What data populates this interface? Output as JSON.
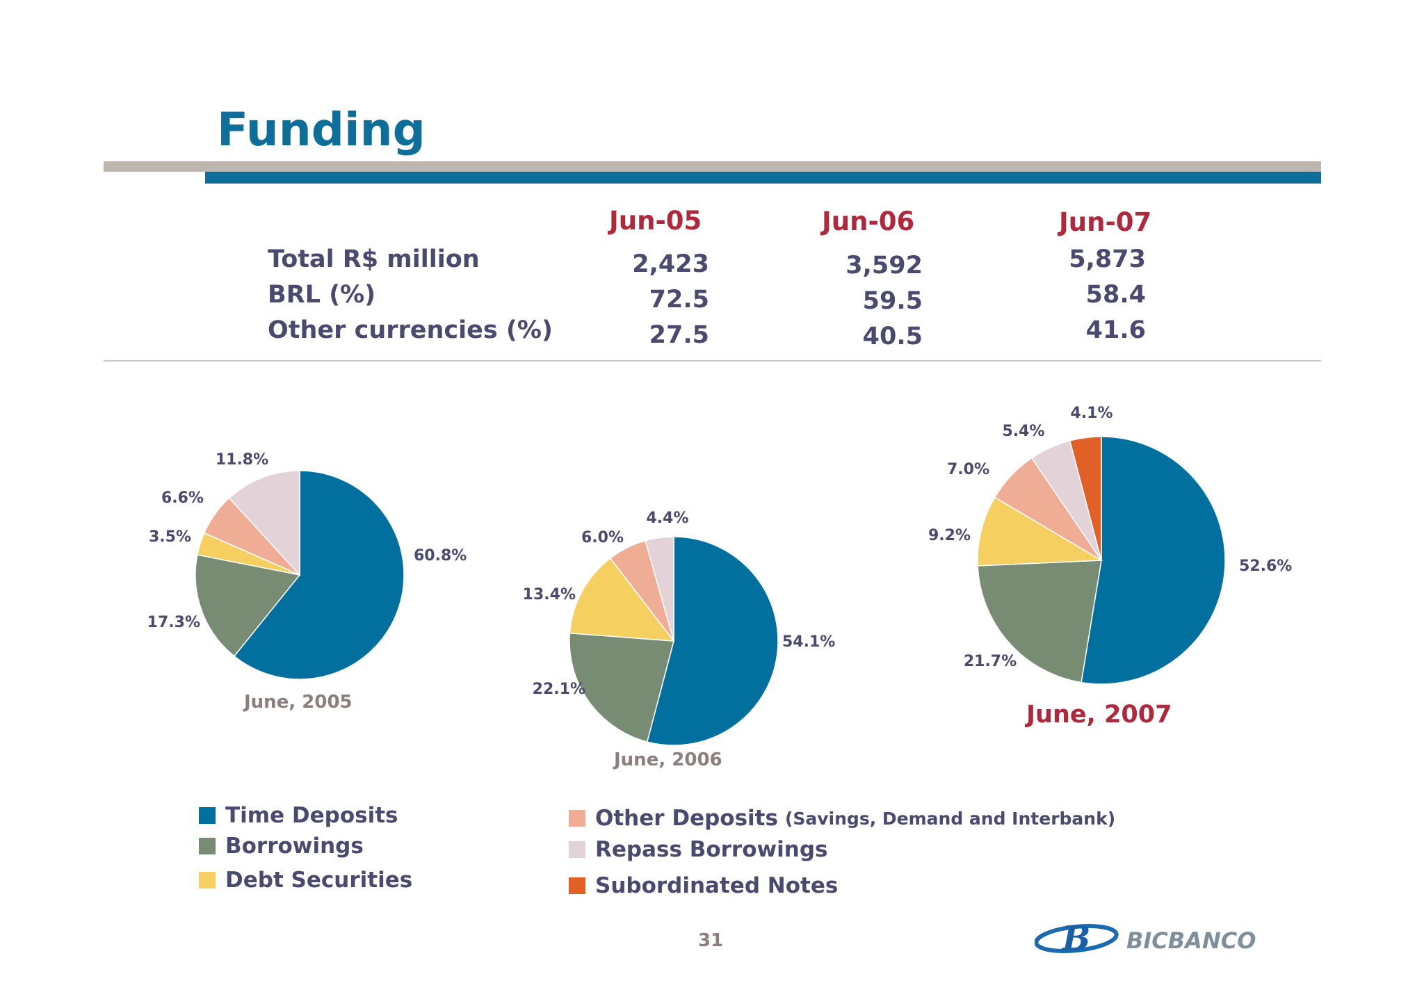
{
  "title": "Funding",
  "table": {
    "columns": [
      "Jun-05",
      "Jun-06",
      "Jun-07"
    ],
    "rows": [
      {
        "label": "Total R$ million",
        "values": [
          "2,423",
          "3,592",
          "5,873"
        ]
      },
      {
        "label": "BRL (%)",
        "values": [
          "72.5",
          "59.5",
          "58.4"
        ]
      },
      {
        "label": "Other currencies (%)",
        "values": [
          "27.5",
          "40.5",
          "41.6"
        ]
      }
    ]
  },
  "chart_data": [
    {
      "type": "pie",
      "title": "June, 2005",
      "categories": [
        "Time Deposits",
        "Borrowings",
        "Debt Securities",
        "Other Deposits",
        "Repass Borrowings"
      ],
      "values": [
        60.8,
        17.3,
        3.5,
        6.6,
        11.8
      ],
      "labels": [
        "60.8%",
        "17.3%",
        "3.5%",
        "6.6%",
        "11.8%"
      ]
    },
    {
      "type": "pie",
      "title": "June, 2006",
      "categories": [
        "Time Deposits",
        "Borrowings",
        "Debt Securities",
        "Other Deposits",
        "Repass Borrowings"
      ],
      "values": [
        54.1,
        22.1,
        13.4,
        6.0,
        4.4
      ],
      "labels": [
        "54.1%",
        "22.1%",
        "13.4%",
        "6.0%",
        "4.4%"
      ]
    },
    {
      "type": "pie",
      "title": "June, 2007",
      "categories": [
        "Time Deposits",
        "Borrowings",
        "Debt Securities",
        "Other Deposits",
        "Repass Borrowings",
        "Subordinated Notes"
      ],
      "values": [
        52.6,
        21.7,
        9.2,
        7.0,
        5.4,
        4.1
      ],
      "labels": [
        "52.6%",
        "21.7%",
        "9.2%",
        "7.0%",
        "5.4%",
        "4.1%"
      ]
    }
  ],
  "legend": {
    "time_deposits": {
      "label": "Time Deposits",
      "color": "#02709f"
    },
    "borrowings": {
      "label": "Borrowings",
      "color": "#778c72"
    },
    "debt_securities": {
      "label": "Debt Securities",
      "color": "#f5d060"
    },
    "other_deposits": {
      "label": "Other Deposits",
      "sub": "(Savings, Demand and Interbank)",
      "color": "#f0ad95"
    },
    "repass_borrowings": {
      "label": "Repass Borrowings",
      "color": "#e3d3d8"
    },
    "subordinated_notes": {
      "label": "Subordinated Notes",
      "color": "#e06025"
    }
  },
  "page_number": "31",
  "logo_text": "BICBANCO"
}
